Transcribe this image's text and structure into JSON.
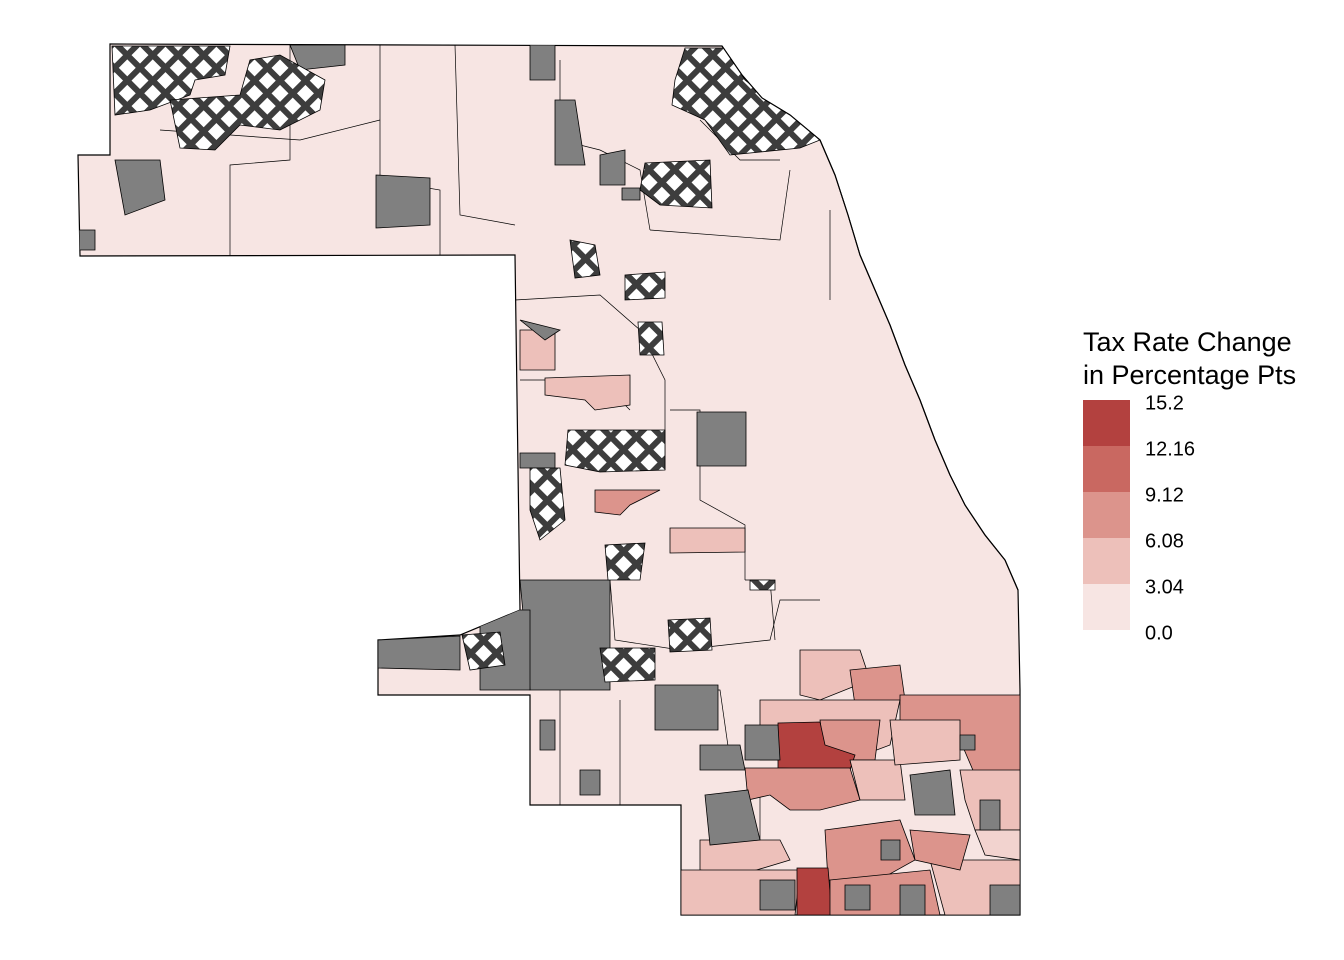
{
  "legend": {
    "title_line1": "Tax Rate Change",
    "title_line2": "in Percentage Pts",
    "tick_labels": [
      "15.2",
      "12.16",
      "9.12",
      "6.08",
      "3.04",
      "0.0"
    ],
    "bins": [
      {
        "from": 12.16,
        "to": 15.2,
        "color": "#b3413f"
      },
      {
        "from": 9.12,
        "to": 12.16,
        "color": "#c96861"
      },
      {
        "from": 6.08,
        "to": 9.12,
        "color": "#dc948c"
      },
      {
        "from": 3.04,
        "to": 6.08,
        "color": "#edc0ba"
      },
      {
        "from": 0.0,
        "to": 3.04,
        "color": "#f7e5e3"
      }
    ]
  },
  "colors": {
    "base_fill": "#f7e5e3",
    "no_data": "#808080",
    "hatch_dark": "#3d3d3d",
    "outline": "#000000"
  }
}
